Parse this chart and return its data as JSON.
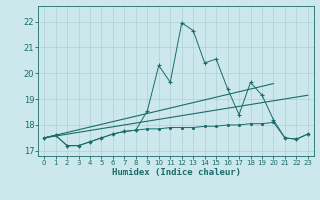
{
  "title": "",
  "xlabel": "Humidex (Indice chaleur)",
  "xlim": [
    -0.5,
    23.5
  ],
  "ylim": [
    16.8,
    22.6
  ],
  "yticks": [
    17,
    18,
    19,
    20,
    21,
    22
  ],
  "xticks": [
    0,
    1,
    2,
    3,
    4,
    5,
    6,
    7,
    8,
    9,
    10,
    11,
    12,
    13,
    14,
    15,
    16,
    17,
    18,
    19,
    20,
    21,
    22,
    23
  ],
  "bg_color": "#cce8ec",
  "line_color": "#1a6b6b",
  "grid_color": "#aed0d6",
  "series_main_x": [
    0,
    1,
    2,
    3,
    4,
    5,
    6,
    7,
    8,
    9,
    10,
    11,
    12,
    13,
    14,
    15,
    16,
    17,
    18,
    19,
    20,
    21,
    22,
    23
  ],
  "series_main_y": [
    17.5,
    17.6,
    17.2,
    17.2,
    17.35,
    17.5,
    17.65,
    17.75,
    17.8,
    18.55,
    20.3,
    19.65,
    21.95,
    21.65,
    20.4,
    20.55,
    19.4,
    18.4,
    19.65,
    19.15,
    18.2,
    17.5,
    17.45,
    17.65
  ],
  "series_flat_x": [
    0,
    1,
    2,
    3,
    4,
    5,
    6,
    7,
    8,
    9,
    10,
    11,
    12,
    13,
    14,
    15,
    16,
    17,
    18,
    19,
    20,
    21,
    22,
    23
  ],
  "series_flat_y": [
    17.5,
    17.6,
    17.2,
    17.2,
    17.35,
    17.5,
    17.65,
    17.75,
    17.8,
    17.85,
    17.85,
    17.9,
    17.9,
    17.9,
    17.95,
    17.95,
    18.0,
    18.0,
    18.05,
    18.05,
    18.1,
    17.5,
    17.45,
    17.65
  ],
  "trend1_x": [
    0,
    23
  ],
  "trend1_y": [
    17.5,
    19.15
  ],
  "trend2_x": [
    0,
    20
  ],
  "trend2_y": [
    17.5,
    19.6
  ]
}
